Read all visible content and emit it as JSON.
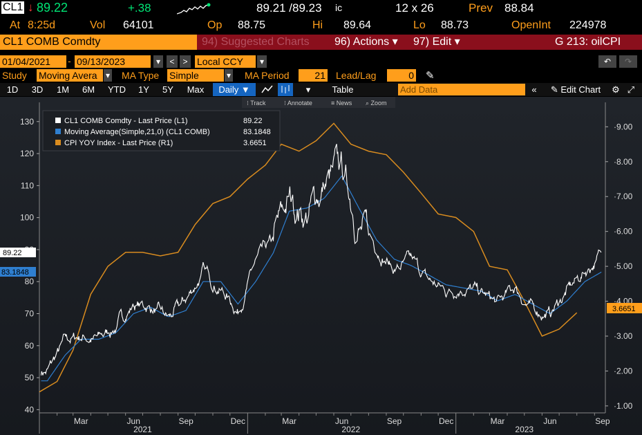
{
  "quote": {
    "ticker": "CL1",
    "arrow": "↓",
    "last": "89.22",
    "change": "+.38",
    "bid_ask": "89.21 /89.23",
    "bid_ask_suffix": "ic",
    "size": "12 x 26",
    "prev_label": "Prev",
    "prev": "88.84",
    "at_label": "At",
    "time": "8:25d",
    "vol_label": "Vol",
    "vol": "64101",
    "op_label": "Op",
    "op": "88.75",
    "hi_label": "Hi",
    "hi": "89.64",
    "lo_label": "Lo",
    "lo": "88.73",
    "oi_label": "OpenInt",
    "oi": "224978"
  },
  "secbar": {
    "security": "CL1 COMB Comdty",
    "suggested": "94) Suggested Charts",
    "actions": "96) Actions ▾",
    "edit": "97) Edit ▾",
    "chart_id": "G 213: oilCPI"
  },
  "dates": {
    "start": "01/04/2021",
    "end": "09/13/2023",
    "currency": "Local CCY"
  },
  "study": {
    "study_label": "Study",
    "study_value": "Moving Avera",
    "ma_type_label": "MA Type",
    "ma_type_value": "Simple",
    "ma_period_label": "MA Period",
    "ma_period_value": "21",
    "lead_lag_label": "Lead/Lag",
    "lead_lag_value": "0"
  },
  "toolbar": {
    "ranges": [
      "1D",
      "3D",
      "1M",
      "6M",
      "YTD",
      "1Y",
      "5Y",
      "Max"
    ],
    "frequency": "Daily ▼",
    "table": "Table",
    "add_data_placeholder": "Add Data",
    "edit_chart": "Edit Chart",
    "tools": [
      "Track",
      "Annotate",
      "News",
      "Zoom"
    ]
  },
  "colors": {
    "orange": "#ff9e1b",
    "blue_ma": "#2f7fd0",
    "price_white": "#ffffff",
    "cpi_line": "#d98c1f",
    "bg": "#1a1d22"
  },
  "chart_data": {
    "type": "line",
    "legend_position": "top-left",
    "grid": false,
    "series": [
      {
        "name": "CL1 COMB Comdty - Last Price (L1)",
        "value_label": "89.22",
        "axis": "left"
      },
      {
        "name": "Moving Average(Simple,21,0) (CL1 COMB)",
        "value_label": "83.1848",
        "axis": "left"
      },
      {
        "name": "CPI YOY Index - Last Price (R1)",
        "value_label": "3.6651",
        "axis": "right"
      }
    ],
    "left_axis": {
      "ticks": [
        40,
        50,
        60,
        70,
        80,
        90,
        100,
        110,
        120,
        130
      ],
      "range": [
        39,
        136
      ],
      "last_labels": [
        "89.22",
        "83.1848"
      ]
    },
    "right_axis": {
      "ticks": [
        "1.00",
        "2.00",
        "3.00",
        "4.00",
        "5.00",
        "6.00",
        "7.00",
        "8.00",
        "9.00"
      ],
      "range": [
        0.8,
        9.7
      ],
      "last_label": "3.6651"
    },
    "x_axis": {
      "month_labels": [
        "Mar",
        "Jun",
        "Sep",
        "Dec",
        "Mar",
        "Jun",
        "Sep",
        "Dec",
        "Mar",
        "Jun",
        "Sep"
      ],
      "year_labels": [
        "2021",
        "2022",
        "2023"
      ]
    },
    "cpi_yoy": {
      "x": [
        "2021-01-01",
        "2021-02-01",
        "2021-03-01",
        "2021-04-01",
        "2021-05-01",
        "2021-06-01",
        "2021-07-01",
        "2021-08-01",
        "2021-09-01",
        "2021-10-01",
        "2021-11-01",
        "2021-12-01",
        "2022-01-01",
        "2022-02-01",
        "2022-03-01",
        "2022-04-01",
        "2022-05-01",
        "2022-06-01",
        "2022-07-01",
        "2022-08-01",
        "2022-09-01",
        "2022-10-01",
        "2022-11-01",
        "2022-12-01",
        "2023-01-01",
        "2023-02-01",
        "2023-03-01",
        "2023-04-01",
        "2023-05-01",
        "2023-06-01",
        "2023-07-01",
        "2023-08-01"
      ],
      "y": [
        1.4,
        1.7,
        2.6,
        4.2,
        5.0,
        5.4,
        5.4,
        5.3,
        5.4,
        6.2,
        6.8,
        7.0,
        7.5,
        7.9,
        8.5,
        8.3,
        8.6,
        9.1,
        8.5,
        8.3,
        8.2,
        7.7,
        7.1,
        6.5,
        6.4,
        6.0,
        5.0,
        4.9,
        4.0,
        3.0,
        3.2,
        3.67
      ]
    },
    "price_monthly": {
      "x": [
        "2021-01",
        "2021-02",
        "2021-03",
        "2021-04",
        "2021-05",
        "2021-06",
        "2021-07",
        "2021-08",
        "2021-09",
        "2021-10",
        "2021-11",
        "2021-12",
        "2022-01",
        "2022-02",
        "2022-03",
        "2022-04",
        "2022-05",
        "2022-06",
        "2022-07",
        "2022-08",
        "2022-09",
        "2022-10",
        "2022-11",
        "2022-12",
        "2023-01",
        "2023-02",
        "2023-03",
        "2023-04",
        "2023-05",
        "2023-06",
        "2023-07",
        "2023-08",
        "2023-09"
      ],
      "y": [
        52,
        61,
        63,
        62,
        66,
        73,
        72,
        68,
        74,
        83,
        78,
        71,
        86,
        92,
        105,
        101,
        110,
        115,
        98,
        91,
        84,
        86,
        80,
        77,
        79,
        76,
        73,
        78,
        71,
        70,
        77,
        83,
        89
      ]
    },
    "ma_monthly": {
      "x": [
        "2021-01",
        "2021-02",
        "2021-03",
        "2021-04",
        "2021-05",
        "2021-06",
        "2021-07",
        "2021-08",
        "2021-09",
        "2021-10",
        "2021-11",
        "2021-12",
        "2022-01",
        "2022-02",
        "2022-03",
        "2022-04",
        "2022-05",
        "2022-06",
        "2022-07",
        "2022-08",
        "2022-09",
        "2022-10",
        "2022-11",
        "2022-12",
        "2023-01",
        "2023-02",
        "2023-03",
        "2023-04",
        "2023-05",
        "2023-06",
        "2023-07",
        "2023-08",
        "2023-09"
      ],
      "y": [
        49,
        57,
        62,
        62,
        64,
        70,
        72,
        69,
        71,
        80,
        80,
        73,
        80,
        89,
        102,
        103,
        106,
        113,
        103,
        93,
        87,
        85,
        82,
        79,
        78,
        77,
        74,
        76,
        73,
        70,
        74,
        80,
        83.18
      ]
    }
  }
}
